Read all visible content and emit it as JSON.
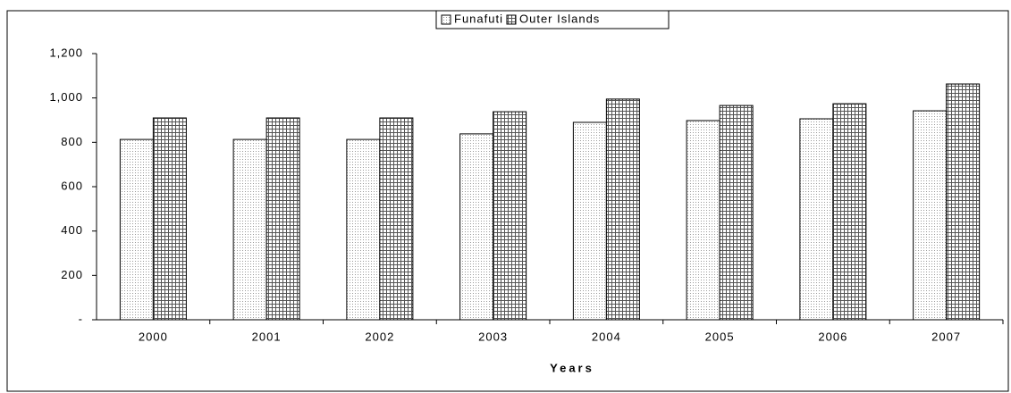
{
  "chart_data": {
    "type": "bar",
    "categories": [
      "2000",
      "2001",
      "2002",
      "2003",
      "2004",
      "2005",
      "2006",
      "2007"
    ],
    "series": [
      {
        "name": "Funafuti",
        "color": "#9a9a9a",
        "values": [
          813,
          813,
          813,
          838,
          890,
          898,
          906,
          942
        ]
      },
      {
        "name": "Outer Islands",
        "color": "#555555",
        "values": [
          910,
          910,
          910,
          938,
          995,
          966,
          974,
          1063
        ]
      }
    ],
    "x_label": "Years",
    "ylim": [
      0,
      1200
    ],
    "yticks": [
      {
        "value": 0,
        "label": "-"
      },
      200,
      400,
      600,
      800,
      {
        "value": 1000,
        "label": "1,000"
      },
      {
        "value": 1200,
        "label": "1,200"
      }
    ],
    "legend": "top"
  }
}
